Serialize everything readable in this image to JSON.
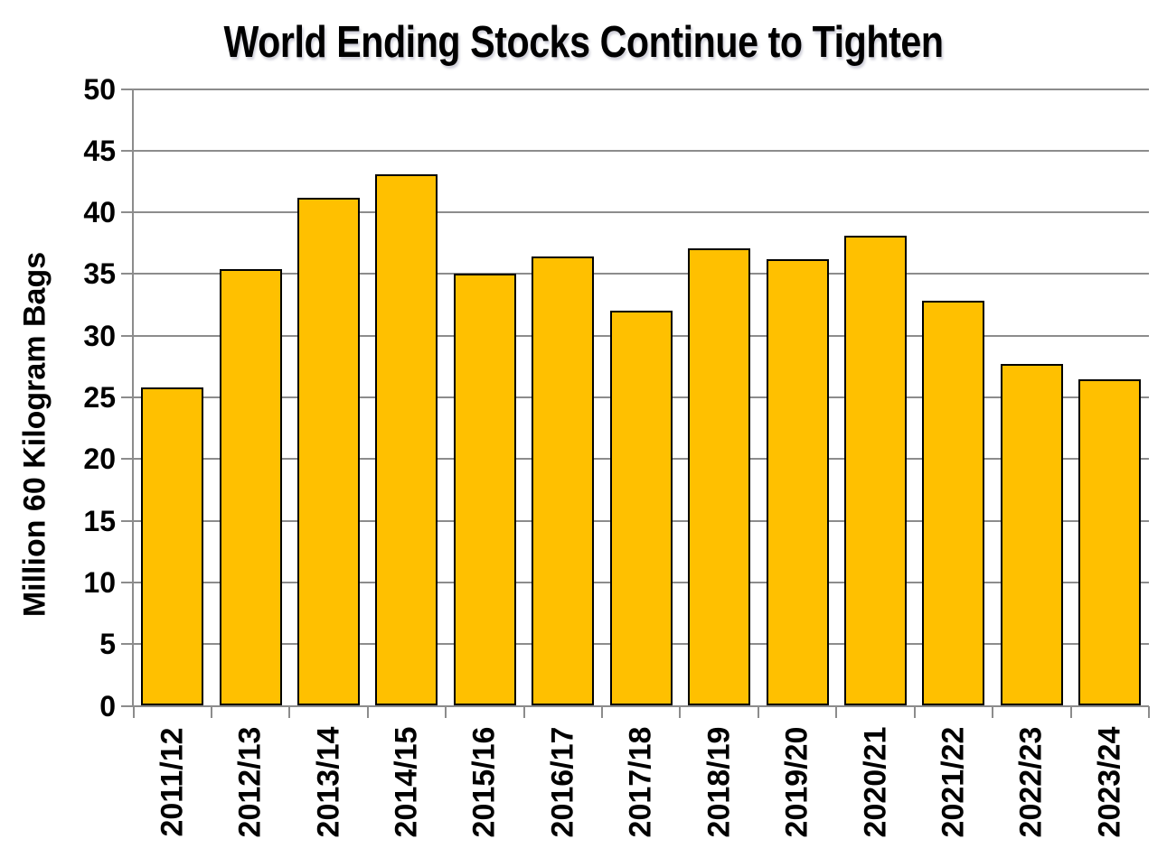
{
  "chart_data": {
    "type": "bar",
    "title": "World Ending Stocks Continue to Tighten",
    "categories": [
      "2011/12",
      "2012/13",
      "2013/14",
      "2014/15",
      "2015/16",
      "2016/17",
      "2017/18",
      "2018/19",
      "2019/20",
      "2020/21",
      "2021/22",
      "2022/23",
      "2023/24"
    ],
    "values": [
      25.8,
      35.4,
      41.2,
      43.1,
      35.0,
      36.4,
      32.0,
      37.1,
      36.2,
      38.1,
      32.8,
      27.7,
      26.5
    ],
    "xlabel": "",
    "ylabel": "Million 60 Kilogram Bags",
    "ylim": [
      0,
      50
    ],
    "yticks": [
      0,
      5,
      10,
      15,
      20,
      25,
      30,
      35,
      40,
      45,
      50
    ],
    "xtick_rotation_degrees": 90,
    "grid": "horizontal",
    "legend_position": "none",
    "bar_color": "#FFC000",
    "bar_border_color": "#000000",
    "grid_color": "#8C8C8C",
    "text_color": "#000000",
    "background_color": "#FFFFFF"
  }
}
